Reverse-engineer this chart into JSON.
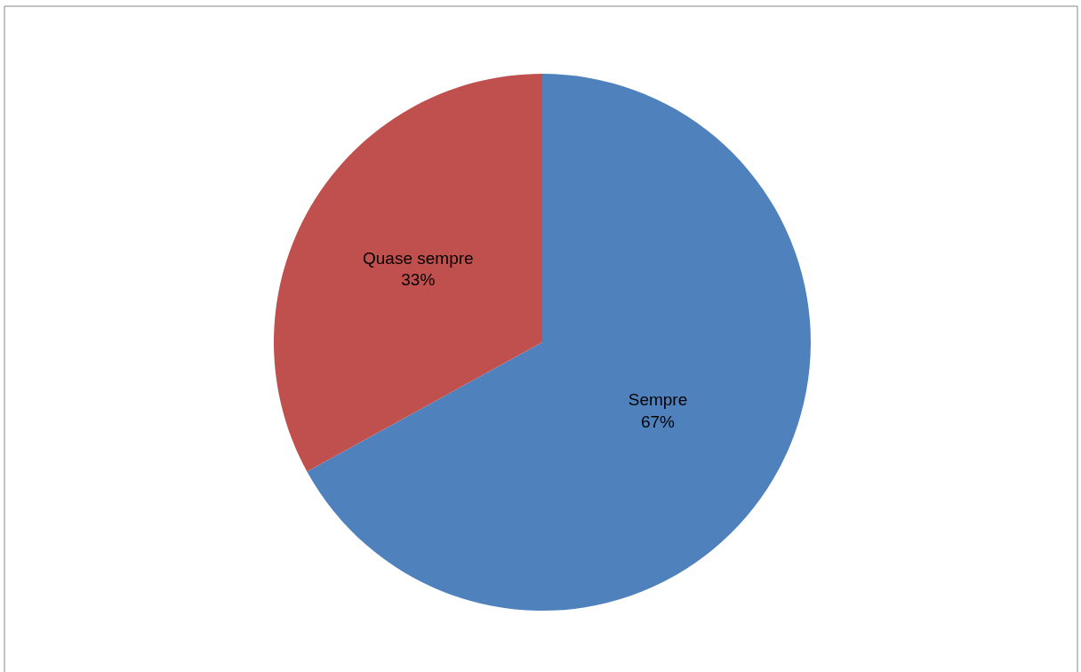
{
  "chart_data": {
    "type": "pie",
    "categories": [
      "Sempre",
      "Quase sempre"
    ],
    "values": [
      67,
      33
    ],
    "colors": [
      "#4f81bd",
      "#c0504d"
    ],
    "value_labels": [
      "67%",
      "33%"
    ]
  }
}
